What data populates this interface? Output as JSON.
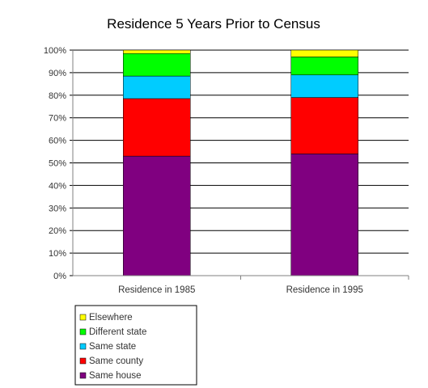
{
  "chart_data": {
    "type": "bar",
    "stacked": true,
    "title": "Residence 5 Years Prior to Census",
    "xlabel": "",
    "ylabel": "",
    "ylim": [
      0,
      100
    ],
    "yticks": [
      "0%",
      "10%",
      "20%",
      "30%",
      "40%",
      "50%",
      "60%",
      "70%",
      "80%",
      "90%",
      "100%"
    ],
    "categories": [
      "Residence in 1985",
      "Residence in 1995"
    ],
    "grid": true,
    "legend_position": "bottom-left",
    "series": [
      {
        "name": "Same house",
        "color": "#800080",
        "values": [
          53,
          54
        ]
      },
      {
        "name": "Same county",
        "color": "#ff0000",
        "values": [
          25.5,
          25
        ]
      },
      {
        "name": "Same state",
        "color": "#00ccff",
        "values": [
          10,
          10
        ]
      },
      {
        "name": "Different state",
        "color": "#00ff00",
        "values": [
          10,
          8
        ]
      },
      {
        "name": "Elsewhere",
        "color": "#ffff00",
        "values": [
          1.5,
          3
        ]
      }
    ]
  }
}
